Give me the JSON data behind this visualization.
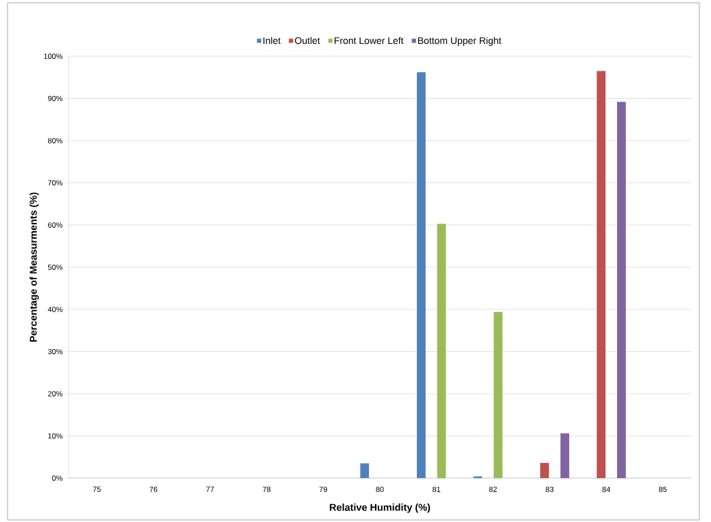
{
  "chart_data": {
    "type": "bar",
    "xlabel": "Relative Humidity (%)",
    "ylabel": "Percentage of Measurments (%)",
    "categories": [
      "75",
      "76",
      "77",
      "78",
      "79",
      "80",
      "81",
      "82",
      "83",
      "84",
      "85"
    ],
    "series": [
      {
        "name": "Inlet",
        "color": "#4f81bd",
        "values": [
          0,
          0,
          0,
          0,
          0,
          3.5,
          96.2,
          0.4,
          0,
          0,
          0
        ]
      },
      {
        "name": "Outlet",
        "color": "#c0504d",
        "values": [
          0,
          0,
          0,
          0,
          0,
          0,
          0,
          0,
          3.6,
          96.5,
          0
        ]
      },
      {
        "name": "Front Lower Left",
        "color": "#9bbb59",
        "values": [
          0,
          0,
          0,
          0,
          0,
          0,
          60.3,
          39.4,
          0,
          0,
          0
        ]
      },
      {
        "name": "Bottom Upper Right",
        "color": "#8064a2",
        "values": [
          0,
          0,
          0,
          0,
          0,
          0,
          0,
          0,
          10.6,
          89.2,
          0
        ]
      }
    ],
    "ylim": [
      0,
      100
    ],
    "yticks": [
      {
        "value": 0,
        "label": "0%"
      },
      {
        "value": 10,
        "label": "10%"
      },
      {
        "value": 20,
        "label": "20%"
      },
      {
        "value": 30,
        "label": "30%"
      },
      {
        "value": 40,
        "label": "40%"
      },
      {
        "value": 50,
        "label": "50%"
      },
      {
        "value": 60,
        "label": "60%"
      },
      {
        "value": 70,
        "label": "70%"
      },
      {
        "value": 80,
        "label": "80%"
      },
      {
        "value": 90,
        "label": "90%"
      },
      {
        "value": 100,
        "label": "100%"
      }
    ],
    "grid": "y",
    "legend": "top"
  }
}
